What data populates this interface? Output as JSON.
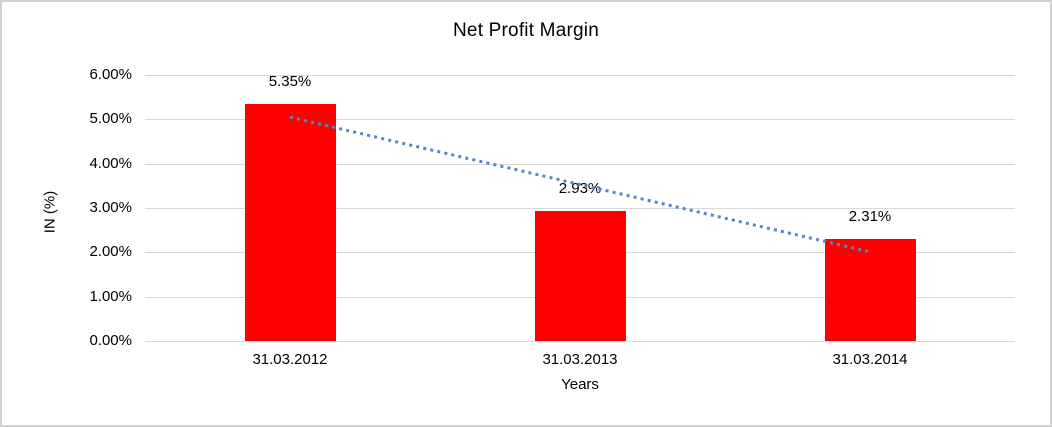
{
  "window": {
    "background": "#ffffff",
    "border_color": "#d3d3d3"
  },
  "chart_data": {
    "type": "bar",
    "title": "Net Profit Margin",
    "xlabel": "Years",
    "ylabel": "IN (%)",
    "categories": [
      "31.03.2012",
      "31.03.2013",
      "31.03.2014"
    ],
    "values": [
      5.35,
      2.93,
      2.31
    ],
    "data_labels": [
      "5.35%",
      "2.93%",
      "2.31%"
    ],
    "ylim": [
      0,
      6
    ],
    "ytick_labels": [
      "0.00%",
      "1.00%",
      "2.00%",
      "3.00%",
      "4.00%",
      "5.00%",
      "6.00%"
    ],
    "grid": true,
    "legend": "none",
    "bar_color": "#ff0000",
    "gridline_color": "#d9d9d9",
    "text_color": "#000000",
    "trendline": {
      "type": "linear",
      "style": "dotted",
      "color": "#5089c8",
      "start_value": 5.05,
      "end_value": 2.01
    }
  }
}
